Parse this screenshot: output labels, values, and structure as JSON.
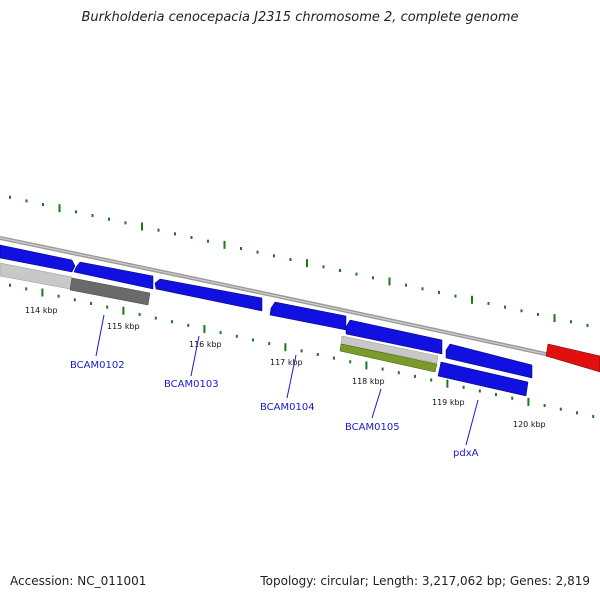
{
  "title": "Burkholderia cenocepacia J2315 chromosome 2, complete genome",
  "footer": {
    "accession": "Accession: NC_011001",
    "topology": "Topology: circular; Length: 3,217,062 bp; Genes: 2,819"
  },
  "colors": {
    "backbone": "#8c8c8c",
    "cds": "#1010e0",
    "cds_highlight": "#e01010",
    "light_grey_feature": "#c8c8c8",
    "dark_grey_feature": "#6a6a6a",
    "olive_feature": "#7a9a2a",
    "tick": "#1a7a1a",
    "gene_label": "#1a1acc"
  },
  "ticks": [
    {
      "label": "114 kbp"
    },
    {
      "label": "115 kbp"
    },
    {
      "label": "116 kbp"
    },
    {
      "label": "117 kbp"
    },
    {
      "label": "118 kbp"
    },
    {
      "label": "119 kbp"
    },
    {
      "label": "120 kbp"
    }
  ],
  "gene_labels": [
    {
      "label": "BCAM0102"
    },
    {
      "label": "BCAM0103"
    },
    {
      "label": "BCAM0104"
    },
    {
      "label": "BCAM0105"
    },
    {
      "label": "pdxA"
    }
  ]
}
